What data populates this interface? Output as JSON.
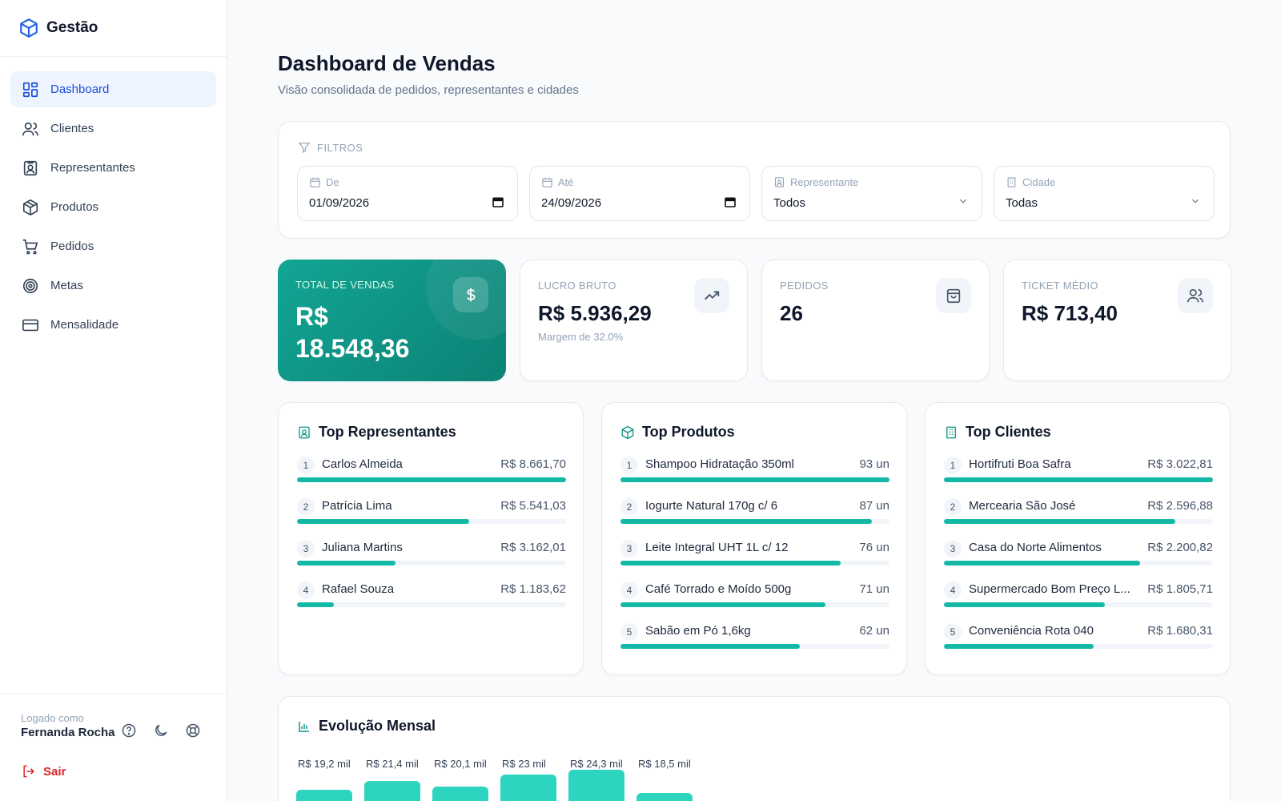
{
  "brand": {
    "name": "Gestão"
  },
  "nav": [
    {
      "label": "Dashboard",
      "icon": "dashboard-icon",
      "active": true
    },
    {
      "label": "Clientes",
      "icon": "users-icon"
    },
    {
      "label": "Representantes",
      "icon": "id-badge-icon"
    },
    {
      "label": "Produtos",
      "icon": "box-icon"
    },
    {
      "label": "Pedidos",
      "icon": "cart-icon"
    },
    {
      "label": "Metas",
      "icon": "target-icon"
    },
    {
      "label": "Mensalidade",
      "icon": "credit-card-icon"
    }
  ],
  "footer": {
    "logged_label": "Logado como",
    "user_name": "Fernanda Rocha",
    "logout": "Sair"
  },
  "header": {
    "title": "Dashboard de Vendas",
    "subtitle": "Visão consolidada de pedidos, representantes e cidades"
  },
  "filters": {
    "title": "FILTROS",
    "from": {
      "label": "De",
      "value": "01/09/2026"
    },
    "to": {
      "label": "Até",
      "value": "24/09/2026"
    },
    "rep": {
      "label": "Representante",
      "value": "Todos"
    },
    "city": {
      "label": "Cidade",
      "value": "Todas"
    }
  },
  "kpis": {
    "total": {
      "label": "TOTAL DE VENDAS",
      "value": "R$ 18.548,36"
    },
    "lucro": {
      "label": "LUCRO BRUTO",
      "value": "R$ 5.936,29",
      "sub": "Margem de 32.0%"
    },
    "pedidos": {
      "label": "PEDIDOS",
      "value": "26"
    },
    "ticket": {
      "label": "TICKET MÉDIO",
      "value": "R$ 713,40"
    }
  },
  "top_reps": {
    "title": "Top Representantes",
    "items": [
      {
        "rank": "1",
        "name": "Carlos Almeida",
        "value": "R$ 8.661,70",
        "pct": 1.0
      },
      {
        "rank": "2",
        "name": "Patrícia Lima",
        "value": "R$ 5.541,03",
        "pct": 0.64
      },
      {
        "rank": "3",
        "name": "Juliana Martins",
        "value": "R$ 3.162,01",
        "pct": 0.365
      },
      {
        "rank": "4",
        "name": "Rafael Souza",
        "value": "R$ 1.183,62",
        "pct": 0.137
      }
    ]
  },
  "top_products": {
    "title": "Top Produtos",
    "items": [
      {
        "rank": "1",
        "name": "Shampoo Hidratação 350ml",
        "value": "93 un",
        "pct": 1.0
      },
      {
        "rank": "2",
        "name": "Iogurte Natural 170g c/ 6",
        "value": "87 un",
        "pct": 0.935
      },
      {
        "rank": "3",
        "name": "Leite Integral UHT 1L c/ 12",
        "value": "76 un",
        "pct": 0.817
      },
      {
        "rank": "4",
        "name": "Café Torrado e Moído 500g",
        "value": "71 un",
        "pct": 0.763
      },
      {
        "rank": "5",
        "name": "Sabão em Pó 1,6kg",
        "value": "62 un",
        "pct": 0.667
      }
    ]
  },
  "top_clients": {
    "title": "Top Clientes",
    "items": [
      {
        "rank": "1",
        "name": "Hortifruti Boa Safra",
        "value": "R$ 3.022,81",
        "pct": 1.0
      },
      {
        "rank": "2",
        "name": "Mercearia São José",
        "value": "R$ 2.596,88",
        "pct": 0.859
      },
      {
        "rank": "3",
        "name": "Casa do Norte Alimentos",
        "value": "R$ 2.200,82",
        "pct": 0.728
      },
      {
        "rank": "4",
        "name": "Supermercado Bom Preço L...",
        "value": "R$ 1.805,71",
        "pct": 0.597
      },
      {
        "rank": "5",
        "name": "Conveniência Rota 040",
        "value": "R$ 1.680,31",
        "pct": 0.556
      }
    ]
  },
  "evolution": {
    "title": "Evolução Mensal",
    "chart_data": {
      "type": "bar",
      "values": [
        19.2,
        21.4,
        20.1,
        23,
        24.3,
        18.5
      ],
      "labels": [
        "R$ 19,2 mil",
        "R$ 21,4 mil",
        "R$ 20,1 mil",
        "R$ 23 mil",
        "R$ 24,3 mil",
        "R$ 18,5 mil"
      ]
    }
  },
  "colors": {
    "accent": "#14b8a6",
    "primary_blue": "#1d4ed8",
    "danger": "#dc2626"
  }
}
